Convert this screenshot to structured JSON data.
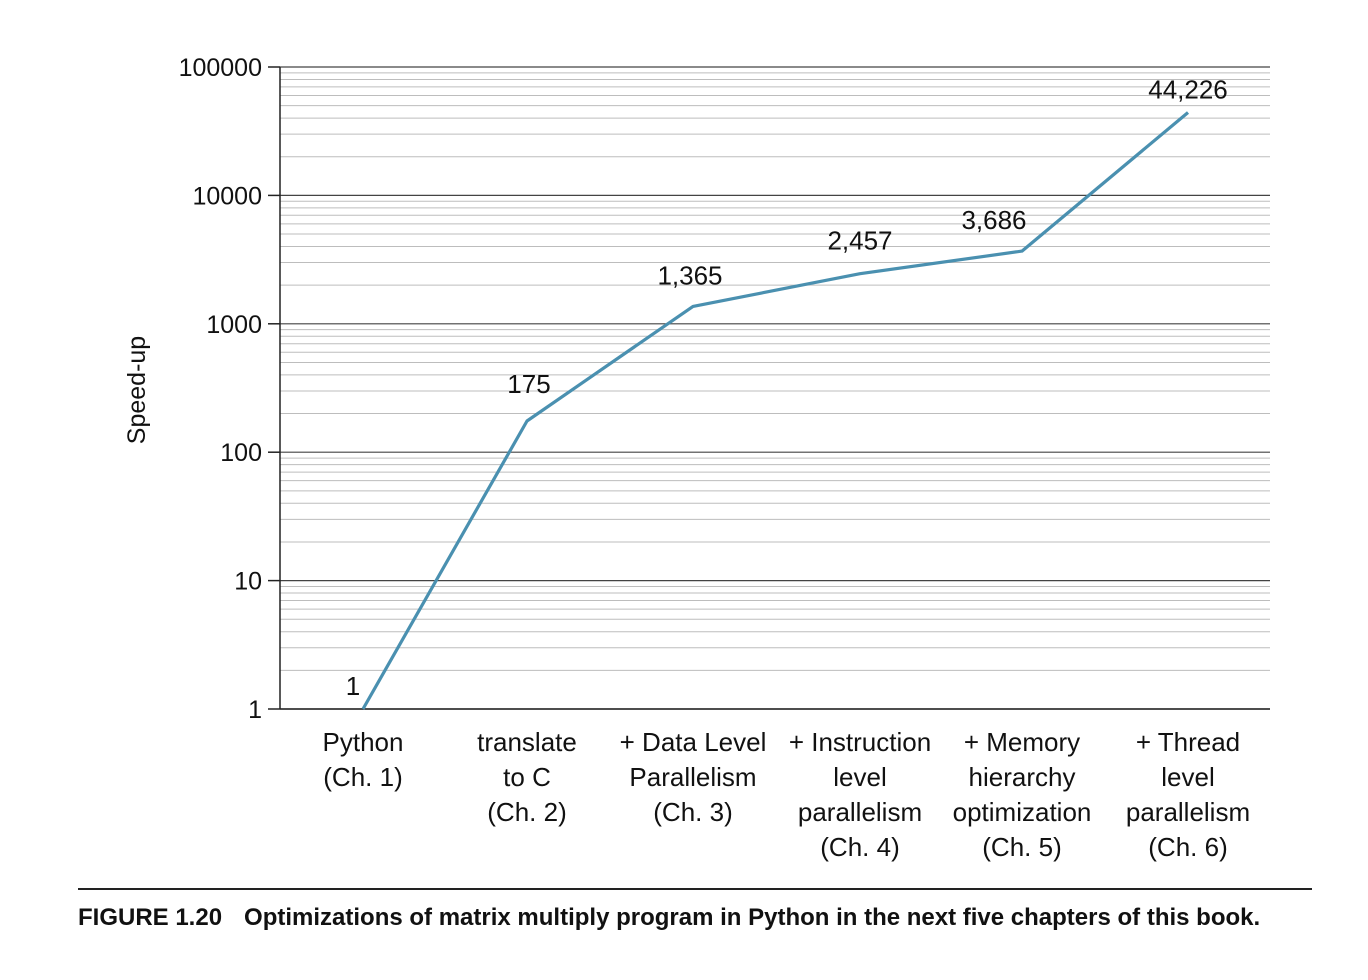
{
  "chart_data": {
    "type": "line",
    "title": "",
    "xlabel": "",
    "ylabel": "Speed-up",
    "yscale": "log",
    "ylim": [
      1,
      100000
    ],
    "yticks": [
      "1",
      "10",
      "100",
      "1000",
      "10000",
      "100000"
    ],
    "grid": true,
    "line_color": "#4a90b0",
    "categories": [
      [
        "Python",
        "(Ch. 1)"
      ],
      [
        "translate",
        "to C",
        "(Ch. 2)"
      ],
      [
        "+ Data Level",
        "Parallelism",
        "(Ch. 3)"
      ],
      [
        "+ Instruction",
        "level",
        "parallelism",
        "(Ch. 4)"
      ],
      [
        "+ Memory",
        "hierarchy",
        "optimization",
        "(Ch. 5)"
      ],
      [
        "+ Thread",
        "level",
        "parallelism",
        "(Ch. 6)"
      ]
    ],
    "series": [
      {
        "values": [
          1,
          175,
          1365,
          2457,
          3686,
          44226
        ],
        "labels": [
          "1",
          "175",
          "1,365",
          "2,457",
          "3,686",
          "44,226"
        ]
      }
    ]
  },
  "caption": {
    "figure_number": "FIGURE 1.20",
    "text": "Optimizations of matrix multiply program in Python in the next five chapters of this book."
  }
}
